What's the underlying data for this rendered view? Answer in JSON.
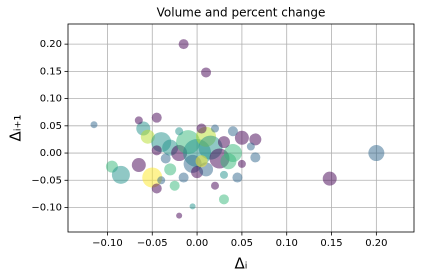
{
  "chart_data": {
    "type": "scatter",
    "title": "Volume and percent change",
    "xlabel": "Δᵢ",
    "ylabel": "Δᵢ₊₁",
    "xlim": [
      -0.144,
      0.242
    ],
    "ylim": [
      -0.145,
      0.237
    ],
    "xticks": [
      {
        "value": -0.1,
        "label": "−0.10"
      },
      {
        "value": -0.05,
        "label": "−0.05"
      },
      {
        "value": 0,
        "label": "0.00"
      },
      0.05,
      {
        "value": 0.1,
        "label": "0.10"
      },
      0.15,
      {
        "value": 0.2,
        "label": "0.20"
      }
    ],
    "yticks": [
      {
        "value": -0.1,
        "label": "−0.10"
      },
      {
        "value": -0.05,
        "label": "−0.05"
      },
      {
        "value": 0,
        "label": "0.00"
      },
      0.05,
      {
        "value": 0.1,
        "label": "0.10"
      },
      0.15,
      {
        "value": 0.2,
        "label": "0.20"
      }
    ],
    "grid": true,
    "alpha": 0.5,
    "x": [
      -0.015,
      0.01,
      -0.115,
      -0.095,
      -0.085,
      -0.065,
      -0.05,
      -0.045,
      -0.04,
      -0.025,
      -0.02,
      -0.005,
      0.02,
      0.03,
      0.045,
      0.03,
      0.148,
      0.2,
      0.05,
      0.065,
      0.06,
      0.065,
      0.04,
      -0.06,
      -0.065,
      -0.045,
      -0.055,
      -0.04,
      -0.03,
      -0.02,
      -0.01,
      0.0,
      0.01,
      0.015,
      0.025,
      0.035,
      -0.005,
      0.0,
      0.01,
      -0.03,
      -0.045,
      0.005,
      0.02,
      -0.02,
      0.04,
      0.03,
      -0.015,
      0.005,
      0.05,
      -0.035
    ],
    "y": [
      0.2,
      0.148,
      0.052,
      -0.025,
      -0.04,
      -0.022,
      -0.045,
      -0.065,
      -0.05,
      -0.06,
      -0.115,
      -0.098,
      -0.06,
      -0.04,
      -0.045,
      -0.085,
      -0.047,
      0.0,
      0.028,
      0.025,
      0.012,
      -0.008,
      0.04,
      0.045,
      0.06,
      0.065,
      0.03,
      0.02,
      0.01,
      0.0,
      0.02,
      0.0,
      0.03,
      0.01,
      -0.01,
      -0.015,
      -0.02,
      -0.035,
      -0.03,
      -0.03,
      0.005,
      0.045,
      0.045,
      0.04,
      0.0,
      0.02,
      -0.045,
      -0.015,
      -0.02,
      -0.01
    ],
    "sizes": [
      25,
      25,
      12,
      36,
      81,
      49,
      100,
      25,
      16,
      25,
      9,
      9,
      16,
      16,
      25,
      25,
      49,
      64,
      49,
      36,
      16,
      25,
      25,
      49,
      16,
      25,
      49,
      100,
      64,
      64,
      144,
      196,
      100,
      144,
      100,
      64,
      81,
      36,
      49,
      36,
      25,
      25,
      16,
      16,
      81,
      36,
      25,
      36,
      16,
      25
    ],
    "colors": [
      "#440154",
      "#440154",
      "#31688e",
      "#35b779",
      "#21918c",
      "#440154",
      "#fde725",
      "#440154",
      "#31688e",
      "#35b779",
      "#440154",
      "#21918c",
      "#440154",
      "#21918c",
      "#31688e",
      "#35b779",
      "#440154",
      "#31688e",
      "#440154",
      "#440154",
      "#31688e",
      "#31688e",
      "#31688e",
      "#21918c",
      "#440154",
      "#440154",
      "#b5de2b",
      "#21918c",
      "#21918c",
      "#440154",
      "#35b779",
      "#21918c",
      "#b5de2b",
      "#21918c",
      "#440154",
      "#35b779",
      "#31688e",
      "#440154",
      "#31688e",
      "#35b779",
      "#440154",
      "#440154",
      "#31688e",
      "#21918c",
      "#35b779",
      "#440154",
      "#31688e",
      "#fde725",
      "#440154",
      "#31688e"
    ]
  }
}
